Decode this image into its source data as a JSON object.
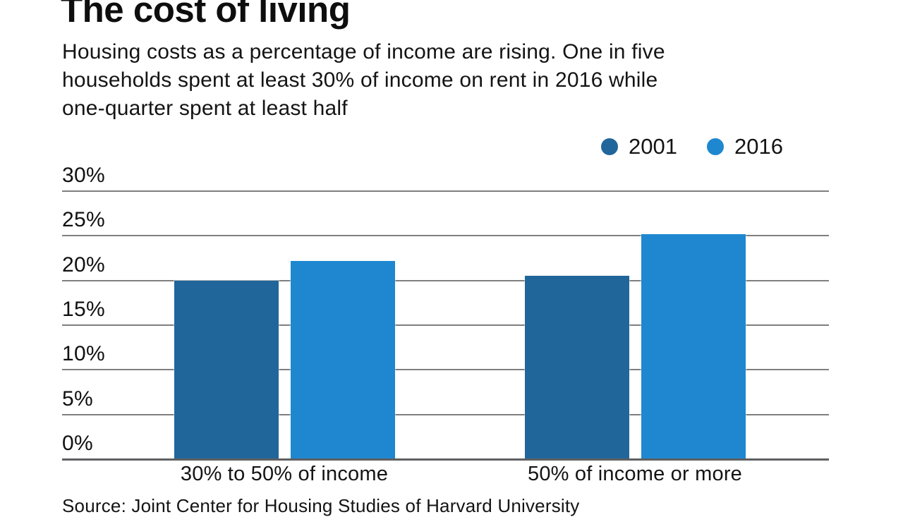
{
  "title": "The cost of living",
  "subtitle_lines": [
    "Housing costs as a percentage of income are rising. One in five",
    "households spent at least 30% of income on rent in 2016 while",
    "one-quarter spent at least half"
  ],
  "source_note": "Source: Joint Center for Housing Studies of Harvard University",
  "colors": {
    "series_2001": "#20669b",
    "series_2016": "#1e87d0",
    "gridline": "#7f7f7f",
    "baseline": "#5f6062",
    "text": "#121212"
  },
  "chart_data": {
    "type": "bar",
    "categories": [
      "30% to 50% of income",
      "50% of income or more"
    ],
    "series": [
      {
        "name": "2001",
        "color": "#20669b",
        "values": [
          20.0,
          20.5
        ]
      },
      {
        "name": "2016",
        "color": "#1e87d0",
        "values": [
          22.2,
          25.2
        ]
      }
    ],
    "ytick_labels": [
      "0%",
      "5%",
      "10%",
      "15%",
      "20%",
      "25%",
      "30%"
    ],
    "ytick_values": [
      0,
      5,
      10,
      15,
      20,
      25,
      30
    ],
    "ylim": [
      0,
      30
    ],
    "grid": true,
    "legend_position": "top-right",
    "legend_labels": [
      "2001",
      "2016"
    ]
  }
}
